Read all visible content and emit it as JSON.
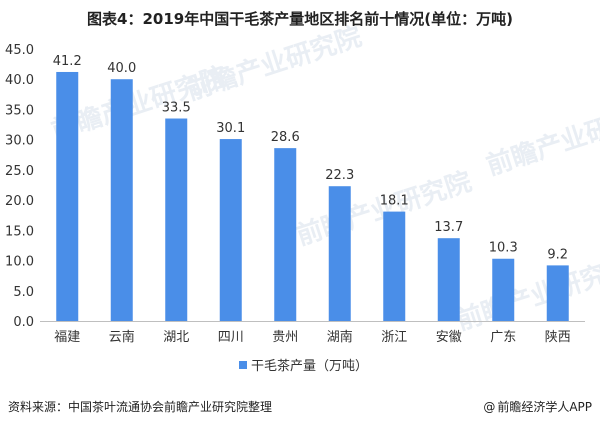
{
  "header": {
    "title": "图表4：2019年中国干毛茶产量地区排名前十情况(单位：万吨)"
  },
  "footer": {
    "source": "资料来源：中国茶叶流通协会前瞻产业研究院整理",
    "brand_symbol": "@",
    "brand": "前瞻经济学人APP"
  },
  "watermark": {
    "text": "前瞻产业研究院"
  },
  "colors": {
    "bar": "#4a8ee8",
    "axis": "#bfbfbf",
    "text": "#333333"
  },
  "chart_data": {
    "type": "bar",
    "title": "图表4：2019年中国干毛茶产量地区排名前十情况(单位：万吨)",
    "categories": [
      "福建",
      "云南",
      "湖北",
      "四川",
      "贵州",
      "湖南",
      "浙江",
      "安徽",
      "广东",
      "陕西"
    ],
    "series": [
      {
        "name": "干毛茶产量（万吨）",
        "values": [
          41.2,
          40.0,
          33.5,
          30.1,
          28.6,
          22.3,
          18.1,
          13.7,
          10.3,
          9.2
        ],
        "labels": [
          "41.2",
          "40.0",
          "33.5",
          "30.1",
          "28.6",
          "22.3",
          "18.1",
          "13.7",
          "10.3",
          "9.2"
        ]
      }
    ],
    "ylim": [
      0,
      45
    ],
    "yticks": [
      "0.0",
      "5.0",
      "10.0",
      "15.0",
      "20.0",
      "25.0",
      "30.0",
      "35.0",
      "40.0",
      "45.0"
    ],
    "xlabel": "",
    "ylabel": "",
    "grid": false,
    "legend": "bottom-center"
  }
}
